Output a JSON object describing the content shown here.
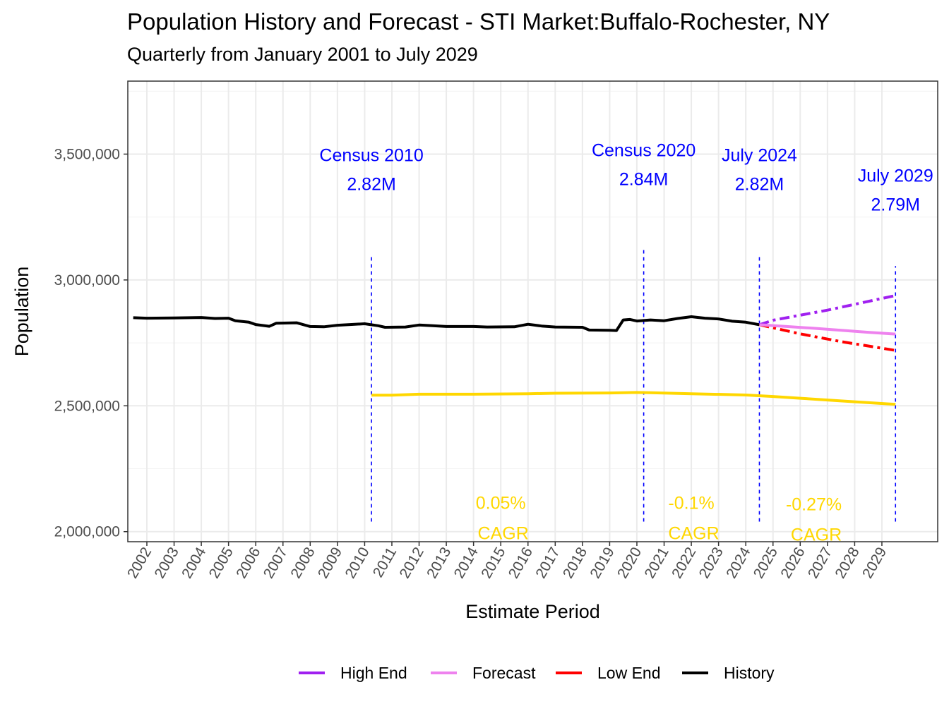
{
  "chart_data": {
    "type": "line",
    "title": "Population History and Forecast - STI Market:Buffalo-Rochester, NY",
    "subtitle": "Quarterly from January 2001 to July 2029",
    "xlabel": "Estimate Period",
    "ylabel": "Population",
    "xlim": [
      2001.3,
      2031.05
    ],
    "ylim": [
      1960000,
      3790000
    ],
    "x_ticks": [
      2002,
      2003,
      2004,
      2005,
      2006,
      2007,
      2008,
      2009,
      2010,
      2011,
      2012,
      2013,
      2014,
      2015,
      2016,
      2017,
      2018,
      2019,
      2020,
      2021,
      2022,
      2023,
      2024,
      2025,
      2026,
      2027,
      2028,
      2029
    ],
    "y_ticks": [
      {
        "value": 2000000,
        "label": "2,000,000"
      },
      {
        "value": 2500000,
        "label": "2,500,000"
      },
      {
        "value": 3000000,
        "label": "3,000,000"
      },
      {
        "value": 3500000,
        "label": "3,500,000"
      }
    ],
    "colors": {
      "history": "#000000",
      "forecast": "#ee82ee",
      "high": "#a020f0",
      "low": "#ff0000",
      "secondary": "#ffd700",
      "annotation": "#0000ff",
      "cagr": "#ffd700"
    },
    "series": [
      {
        "name": "History",
        "key": "history",
        "dash": "solid",
        "points": [
          [
            2001.5,
            2850000
          ],
          [
            2002.0,
            2848000
          ],
          [
            2003.0,
            2849000
          ],
          [
            2004.0,
            2851000
          ],
          [
            2004.5,
            2847000
          ],
          [
            2005.0,
            2848000
          ],
          [
            2005.25,
            2838000
          ],
          [
            2005.75,
            2832000
          ],
          [
            2006.0,
            2823000
          ],
          [
            2006.5,
            2816000
          ],
          [
            2006.75,
            2828000
          ],
          [
            2007.5,
            2830000
          ],
          [
            2008.0,
            2815000
          ],
          [
            2008.5,
            2814000
          ],
          [
            2009.0,
            2820000
          ],
          [
            2010.0,
            2826000
          ],
          [
            2010.5,
            2818000
          ],
          [
            2010.75,
            2812000
          ],
          [
            2011.5,
            2813000
          ],
          [
            2012.0,
            2821000
          ],
          [
            2012.5,
            2818000
          ],
          [
            2013.0,
            2815000
          ],
          [
            2014.0,
            2815000
          ],
          [
            2014.5,
            2813000
          ],
          [
            2015.5,
            2814000
          ],
          [
            2016.0,
            2824000
          ],
          [
            2016.5,
            2817000
          ],
          [
            2017.0,
            2813000
          ],
          [
            2018.0,
            2812000
          ],
          [
            2018.25,
            2801000
          ],
          [
            2019.0,
            2800000
          ],
          [
            2019.25,
            2799000
          ],
          [
            2019.5,
            2841000
          ],
          [
            2019.75,
            2843000
          ],
          [
            2020.0,
            2837000
          ],
          [
            2020.5,
            2841000
          ],
          [
            2021.0,
            2838000
          ],
          [
            2021.5,
            2847000
          ],
          [
            2022.0,
            2854000
          ],
          [
            2022.5,
            2848000
          ],
          [
            2023.0,
            2845000
          ],
          [
            2023.5,
            2836000
          ],
          [
            2024.0,
            2832000
          ],
          [
            2024.5,
            2822000
          ]
        ]
      },
      {
        "name": "Forecast",
        "key": "forecast",
        "dash": "solid",
        "points": [
          [
            2024.5,
            2822000
          ],
          [
            2025.5,
            2815000
          ],
          [
            2026.5,
            2808000
          ],
          [
            2027.5,
            2800000
          ],
          [
            2028.5,
            2792000
          ],
          [
            2029.5,
            2785000
          ]
        ]
      },
      {
        "name": "High End",
        "key": "high",
        "dash": "dashdot",
        "points": [
          [
            2024.5,
            2822000
          ],
          [
            2025.0,
            2840000
          ],
          [
            2027.0,
            2880000
          ],
          [
            2029.5,
            2938000
          ]
        ]
      },
      {
        "name": "Low End",
        "key": "low",
        "dash": "dashdot",
        "points": [
          [
            2024.5,
            2822000
          ],
          [
            2026.0,
            2786000
          ],
          [
            2027.5,
            2755000
          ],
          [
            2029.5,
            2720000
          ]
        ]
      },
      {
        "name": "",
        "key": "secondary",
        "dash": "solid",
        "legend": false,
        "points": [
          [
            2010.25,
            2542000
          ],
          [
            2011.0,
            2542000
          ],
          [
            2012.0,
            2546000
          ],
          [
            2014.0,
            2546000
          ],
          [
            2016.0,
            2548000
          ],
          [
            2017.0,
            2550000
          ],
          [
            2019.0,
            2551000
          ],
          [
            2020.0,
            2553000
          ],
          [
            2020.5,
            2552000
          ],
          [
            2022.0,
            2548000
          ],
          [
            2024.0,
            2543000
          ],
          [
            2025.0,
            2537000
          ],
          [
            2026.0,
            2530000
          ],
          [
            2027.0,
            2523000
          ],
          [
            2028.0,
            2516000
          ],
          [
            2029.5,
            2506000
          ]
        ]
      }
    ],
    "reference_lines": [
      {
        "x": 2010.25,
        "y_from": 2040000,
        "y_to": 3100000
      },
      {
        "x": 2020.25,
        "y_from": 2040000,
        "y_to": 3120000
      },
      {
        "x": 2024.5,
        "y_from": 2040000,
        "y_to": 3100000
      },
      {
        "x": 2029.5,
        "y_from": 2040000,
        "y_to": 3055000
      }
    ],
    "annotations": [
      {
        "name": "census-2010",
        "x": 2010.25,
        "y": 3472000,
        "lines": [
          "Census 2010",
          "2.82M"
        ]
      },
      {
        "name": "census-2020",
        "x": 2020.25,
        "y": 3492000,
        "lines": [
          "Census 2020",
          "2.84M"
        ]
      },
      {
        "name": "july-2024",
        "x": 2024.5,
        "y": 3472000,
        "lines": [
          "July 2024",
          "2.82M"
        ]
      },
      {
        "name": "july-2029",
        "x": 2029.5,
        "y": 3390000,
        "lines": [
          "July 2029",
          "2.79M"
        ]
      }
    ],
    "cagr_labels": [
      {
        "name": "cagr-2010-2020",
        "x": 2015.0,
        "y": 2090000,
        "lines": [
          "0.05%",
          " CAGR"
        ]
      },
      {
        "name": "cagr-2020-2024",
        "x": 2022.0,
        "y": 2090000,
        "lines": [
          "-0.1%",
          " CAGR"
        ]
      },
      {
        "name": "cagr-2024-2029",
        "x": 2026.5,
        "y": 2085000,
        "lines": [
          "-0.27%",
          " CAGR"
        ]
      }
    ],
    "legend": {
      "position": "bottom",
      "entries": [
        {
          "label": "High End",
          "key": "high"
        },
        {
          "label": "Forecast",
          "key": "forecast"
        },
        {
          "label": "Low End",
          "key": "low"
        },
        {
          "label": "History",
          "key": "history"
        }
      ]
    }
  }
}
